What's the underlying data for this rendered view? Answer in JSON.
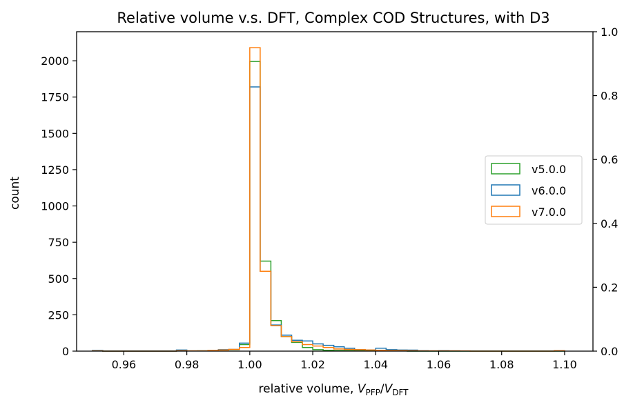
{
  "chart_data": {
    "type": "histogram",
    "title": "Relative volume v.s. DFT, Complex COD Structures, with D3",
    "xlabel": {
      "main": "relative volume, ",
      "v": "V",
      "sub1": "PFP",
      "slash": "/",
      "v2": "V",
      "sub2": "DFT"
    },
    "ylabel": "count",
    "xlim": [
      0.945,
      1.109
    ],
    "ylim": [
      0,
      2200
    ],
    "y2lim": [
      0,
      1.0
    ],
    "x_ticks": [
      0.96,
      0.98,
      1.0,
      1.02,
      1.04,
      1.06,
      1.08,
      1.1
    ],
    "x_tick_labels": [
      "0.96",
      "0.98",
      "1.00",
      "1.02",
      "1.04",
      "1.06",
      "1.08",
      "1.10"
    ],
    "y_ticks": [
      0,
      250,
      500,
      750,
      1000,
      1250,
      1500,
      1750,
      2000
    ],
    "y_tick_labels": [
      "0",
      "250",
      "500",
      "750",
      "1000",
      "1250",
      "1500",
      "1750",
      "2000"
    ],
    "y2_ticks": [
      0.0,
      0.2,
      0.4,
      0.6,
      0.8,
      1.0
    ],
    "y2_tick_labels": [
      "0.0",
      "0.2",
      "0.4",
      "0.6",
      "0.8",
      "1.0"
    ],
    "legend_position": "center-right",
    "series": [
      {
        "name": "v5.0.0",
        "color": "#2ca02c",
        "bins": [
          [
            0.95,
            0.9533,
            3
          ],
          [
            0.9533,
            0.9567,
            0
          ],
          [
            0.9567,
            0.96,
            0
          ],
          [
            0.96,
            0.9633,
            0
          ],
          [
            0.9633,
            0.9667,
            0
          ],
          [
            0.9667,
            0.97,
            0
          ],
          [
            0.97,
            0.9733,
            0
          ],
          [
            0.9733,
            0.9767,
            0
          ],
          [
            0.9767,
            0.98,
            2
          ],
          [
            0.98,
            0.9833,
            1
          ],
          [
            0.9833,
            0.9867,
            2
          ],
          [
            0.9867,
            0.99,
            3
          ],
          [
            0.99,
            0.9933,
            8
          ],
          [
            0.9933,
            0.9967,
            10
          ],
          [
            0.9967,
            1.0,
            45
          ],
          [
            1.0,
            1.0033,
            1995
          ],
          [
            1.0033,
            1.0067,
            620
          ],
          [
            1.0067,
            1.01,
            210
          ],
          [
            1.01,
            1.0133,
            100
          ],
          [
            1.0133,
            1.0167,
            60
          ],
          [
            1.0167,
            1.02,
            25
          ],
          [
            1.02,
            1.0233,
            10
          ],
          [
            1.0233,
            1.0267,
            6
          ],
          [
            1.0267,
            1.03,
            5
          ],
          [
            1.03,
            1.0333,
            4
          ],
          [
            1.0333,
            1.0367,
            3
          ],
          [
            1.0367,
            1.04,
            2
          ],
          [
            1.04,
            1.0433,
            2
          ],
          [
            1.0433,
            1.0467,
            1
          ],
          [
            1.0467,
            1.05,
            1
          ],
          [
            1.05,
            1.1,
            0
          ]
        ]
      },
      {
        "name": "v6.0.0",
        "color": "#1f77b4",
        "bins": [
          [
            0.95,
            0.9533,
            5
          ],
          [
            0.9533,
            0.9567,
            0
          ],
          [
            0.9567,
            0.96,
            0
          ],
          [
            0.96,
            0.9633,
            0
          ],
          [
            0.9633,
            0.9667,
            0
          ],
          [
            0.9667,
            0.97,
            0
          ],
          [
            0.97,
            0.9733,
            0
          ],
          [
            0.9733,
            0.9767,
            0
          ],
          [
            0.9767,
            0.98,
            8
          ],
          [
            0.98,
            0.9833,
            2
          ],
          [
            0.9833,
            0.9867,
            2
          ],
          [
            0.9867,
            0.99,
            3
          ],
          [
            0.99,
            0.9933,
            10
          ],
          [
            0.9933,
            0.9967,
            12
          ],
          [
            0.9967,
            1.0,
            55
          ],
          [
            1.0,
            1.0033,
            1820
          ],
          [
            1.0033,
            1.0067,
            550
          ],
          [
            1.0067,
            1.01,
            180
          ],
          [
            1.01,
            1.0133,
            110
          ],
          [
            1.0133,
            1.0167,
            75
          ],
          [
            1.0167,
            1.02,
            70
          ],
          [
            1.02,
            1.0233,
            50
          ],
          [
            1.0233,
            1.0267,
            40
          ],
          [
            1.0267,
            1.03,
            30
          ],
          [
            1.03,
            1.0333,
            20
          ],
          [
            1.0333,
            1.0367,
            10
          ],
          [
            1.0367,
            1.04,
            8
          ],
          [
            1.04,
            1.0433,
            20
          ],
          [
            1.0433,
            1.0467,
            10
          ],
          [
            1.0467,
            1.05,
            8
          ],
          [
            1.05,
            1.0533,
            7
          ],
          [
            1.0533,
            1.0567,
            3
          ],
          [
            1.0567,
            1.06,
            2
          ],
          [
            1.06,
            1.0633,
            3
          ],
          [
            1.0633,
            1.0667,
            2
          ],
          [
            1.0667,
            1.07,
            1
          ]
        ]
      },
      {
        "name": "v7.0.0",
        "color": "#ff7f0e",
        "bins": [
          [
            0.95,
            0.9533,
            2
          ],
          [
            0.9533,
            0.9567,
            0
          ],
          [
            0.9567,
            0.96,
            0
          ],
          [
            0.96,
            0.9633,
            0
          ],
          [
            0.9633,
            0.9667,
            0
          ],
          [
            0.9667,
            0.97,
            0
          ],
          [
            0.97,
            0.9733,
            0
          ],
          [
            0.9733,
            0.9767,
            0
          ],
          [
            0.9767,
            0.98,
            3
          ],
          [
            0.98,
            0.9833,
            2
          ],
          [
            0.9833,
            0.9867,
            2
          ],
          [
            0.9867,
            0.99,
            5
          ],
          [
            0.99,
            0.9933,
            8
          ],
          [
            0.9933,
            0.9967,
            12
          ],
          [
            0.9967,
            1.0,
            25
          ],
          [
            1.0,
            1.0033,
            2090
          ],
          [
            1.0033,
            1.0067,
            550
          ],
          [
            1.0067,
            1.01,
            175
          ],
          [
            1.01,
            1.0133,
            100
          ],
          [
            1.0133,
            1.0167,
            65
          ],
          [
            1.0167,
            1.02,
            45
          ],
          [
            1.02,
            1.0233,
            35
          ],
          [
            1.0233,
            1.0267,
            25
          ],
          [
            1.0267,
            1.03,
            15
          ],
          [
            1.03,
            1.0333,
            12
          ],
          [
            1.0333,
            1.0367,
            10
          ],
          [
            1.0367,
            1.04,
            8
          ],
          [
            1.04,
            1.0433,
            6
          ],
          [
            1.0433,
            1.0467,
            5
          ],
          [
            1.0467,
            1.05,
            4
          ],
          [
            1.05,
            1.0533,
            3
          ],
          [
            1.0533,
            1.0567,
            2
          ],
          [
            1.0567,
            1.06,
            2
          ],
          [
            1.06,
            1.0633,
            2
          ],
          [
            1.0633,
            1.0667,
            2
          ],
          [
            1.0667,
            1.07,
            1
          ],
          [
            1.07,
            1.0967,
            0
          ],
          [
            1.0967,
            1.1,
            3
          ]
        ]
      }
    ]
  }
}
